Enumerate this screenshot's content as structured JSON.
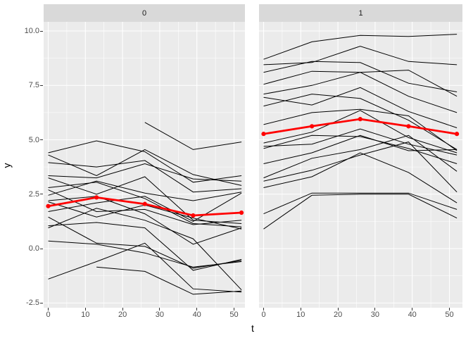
{
  "chart_data": {
    "type": "line",
    "subtype": "faceted-spaghetti-plot-with-mean",
    "title": "",
    "xlabel": "t",
    "ylabel": "y",
    "grid": true,
    "legend": "none",
    "xlim": [
      -1.2,
      52.9
    ],
    "ylim": [
      -2.72,
      10.42
    ],
    "t_values": [
      0,
      13,
      26,
      39,
      52
    ],
    "x_ticks": {
      "values": [
        0,
        10,
        20,
        30,
        40,
        50
      ],
      "labels": [
        "0",
        "10",
        "20",
        "30",
        "40",
        "50"
      ]
    },
    "y_ticks": {
      "values": [
        10.0,
        7.5,
        5.0,
        2.5,
        0.0,
        -2.5
      ],
      "labels": [
        "10.0",
        "7.5",
        "5.0",
        "2.5",
        "0.0",
        "-2.5"
      ]
    },
    "x_minor": [
      5,
      15,
      25,
      35,
      45
    ],
    "y_minor": [
      -1.25,
      1.25,
      3.75,
      6.25,
      8.75
    ],
    "colors": {
      "panel_bg": "#EBEBEB",
      "strip_bg": "#D9D9D9",
      "grid": "#FFFFFF",
      "subject_line": "#000000",
      "mean_line": "#FF0000",
      "tick_text": "#4D4D4D",
      "strip_text": "#1A1A1A",
      "axis_title_text": "#000000",
      "tick_mark": "#333333"
    },
    "facets": [
      {
        "label": "0",
        "lines": [
          [
            [
              0,
              4.4
            ],
            [
              13,
              4.95
            ],
            [
              26,
              4.45
            ],
            [
              39,
              3.05
            ],
            [
              52,
              3.35
            ]
          ],
          [
            [
              0,
              4.3
            ],
            [
              13,
              3.35
            ],
            [
              26,
              4.55
            ],
            [
              39,
              3.4
            ],
            [
              52,
              2.9
            ]
          ],
          [
            [
              0,
              3.95
            ],
            [
              13,
              3.75
            ],
            [
              26,
              4.05
            ],
            [
              39,
              2.6
            ],
            [
              52,
              2.75
            ]
          ],
          [
            [
              0,
              3.35
            ],
            [
              13,
              3.25
            ],
            [
              26,
              3.9
            ],
            [
              39,
              3.2
            ],
            [
              52,
              3.1
            ]
          ],
          [
            [
              0,
              3.25
            ],
            [
              13,
              2.5
            ],
            [
              26,
              3.3
            ],
            [
              39,
              1.3
            ],
            [
              52,
              1.15
            ]
          ],
          [
            [
              0,
              2.8
            ],
            [
              13,
              3.05
            ],
            [
              26,
              2.3
            ],
            [
              39,
              1.15
            ],
            [
              52,
              1.0
            ]
          ],
          [
            [
              0,
              2.7
            ],
            [
              13,
              1.7
            ],
            [
              26,
              1.8
            ],
            [
              39,
              1.1
            ],
            [
              52,
              1.3
            ]
          ],
          [
            [
              0,
              2.45
            ],
            [
              13,
              3.1
            ],
            [
              26,
              2.55
            ],
            [
              39,
              2.2
            ],
            [
              52,
              2.6
            ]
          ],
          [
            [
              0,
              2.2
            ],
            [
              13,
              2.4
            ],
            [
              26,
              1.6
            ],
            [
              39,
              0.2
            ],
            [
              52,
              0.95
            ]
          ],
          [
            [
              0,
              2.15
            ],
            [
              13,
              1.45
            ],
            [
              26,
              2.0
            ],
            [
              39,
              1.4
            ],
            [
              52,
              0.9
            ]
          ],
          [
            [
              0,
              1.7
            ],
            [
              13,
              2.1
            ],
            [
              26,
              2.4
            ],
            [
              39,
              1.25
            ],
            [
              52,
              2.55
            ]
          ],
          [
            [
              0,
              1.45
            ],
            [
              13,
              0.25
            ],
            [
              26,
              0.1
            ],
            [
              39,
              -0.9
            ],
            [
              52,
              -0.55
            ]
          ],
          [
            [
              0,
              1.05
            ],
            [
              13,
              1.2
            ],
            [
              26,
              0.95
            ],
            [
              39,
              -1.0
            ],
            [
              52,
              -0.5
            ]
          ],
          [
            [
              0,
              0.95
            ],
            [
              13,
              1.85
            ],
            [
              26,
              1.3
            ],
            [
              39,
              0.45
            ],
            [
              52,
              -1.9
            ]
          ],
          [
            [
              0,
              0.35
            ],
            [
              13,
              0.2
            ],
            [
              26,
              -0.2
            ],
            [
              39,
              -0.85
            ],
            [
              52,
              -0.6
            ]
          ],
          [
            [
              0,
              -1.4
            ],
            [
              13,
              -0.6
            ],
            [
              26,
              0.25
            ],
            [
              39,
              -1.85
            ],
            [
              52,
              -2.0
            ]
          ],
          [
            [
              13,
              -0.85
            ],
            [
              26,
              -1.05
            ],
            [
              39,
              -2.1
            ],
            [
              52,
              -1.95
            ]
          ],
          [
            [
              26,
              5.8
            ],
            [
              39,
              4.55
            ],
            [
              52,
              4.9
            ]
          ]
        ],
        "mean_line": [
          [
            0,
            1.95
          ],
          [
            13,
            2.35
          ],
          [
            26,
            2.05
          ],
          [
            39,
            1.52
          ],
          [
            52,
            1.65
          ]
        ]
      },
      {
        "label": "1",
        "lines": [
          [
            [
              0,
              8.7
            ],
            [
              13,
              9.5
            ],
            [
              26,
              9.8
            ],
            [
              39,
              9.75
            ],
            [
              52,
              9.85
            ]
          ],
          [
            [
              0,
              8.45
            ],
            [
              13,
              8.55
            ],
            [
              26,
              9.3
            ],
            [
              39,
              8.6
            ],
            [
              52,
              8.45
            ]
          ],
          [
            [
              0,
              8.1
            ],
            [
              13,
              8.6
            ],
            [
              26,
              8.55
            ],
            [
              39,
              7.6
            ],
            [
              52,
              7.2
            ]
          ],
          [
            [
              0,
              7.55
            ],
            [
              13,
              8.15
            ],
            [
              26,
              8.1
            ],
            [
              39,
              8.2
            ],
            [
              52,
              7.0
            ]
          ],
          [
            [
              0,
              7.1
            ],
            [
              13,
              7.5
            ],
            [
              26,
              8.1
            ],
            [
              39,
              7.0
            ],
            [
              52,
              6.25
            ]
          ],
          [
            [
              0,
              6.95
            ],
            [
              13,
              6.6
            ],
            [
              26,
              7.4
            ],
            [
              39,
              6.3
            ],
            [
              52,
              5.55
            ]
          ],
          [
            [
              0,
              6.55
            ],
            [
              13,
              7.1
            ],
            [
              26,
              6.9
            ],
            [
              39,
              5.9
            ],
            [
              52,
              4.55
            ]
          ],
          [
            [
              0,
              5.7
            ],
            [
              13,
              6.25
            ],
            [
              26,
              6.4
            ],
            [
              39,
              6.1
            ],
            [
              52,
              4.5
            ]
          ],
          [
            [
              0,
              4.85
            ],
            [
              13,
              5.35
            ],
            [
              26,
              6.35
            ],
            [
              39,
              5.1
            ],
            [
              52,
              4.4
            ]
          ],
          [
            [
              0,
              4.7
            ],
            [
              13,
              4.8
            ],
            [
              26,
              5.5
            ],
            [
              39,
              4.8
            ],
            [
              52,
              4.3
            ]
          ],
          [
            [
              0,
              4.6
            ],
            [
              13,
              5.2
            ],
            [
              26,
              5.15
            ],
            [
              39,
              4.6
            ],
            [
              52,
              3.9
            ]
          ],
          [
            [
              0,
              3.9
            ],
            [
              13,
              4.4
            ],
            [
              26,
              5.2
            ],
            [
              39,
              4.5
            ],
            [
              52,
              4.55
            ]
          ],
          [
            [
              0,
              3.25
            ],
            [
              13,
              4.15
            ],
            [
              26,
              4.55
            ],
            [
              39,
              5.2
            ],
            [
              52,
              3.55
            ]
          ],
          [
            [
              0,
              3.1
            ],
            [
              13,
              3.6
            ],
            [
              26,
              4.3
            ],
            [
              39,
              4.9
            ],
            [
              52,
              2.6
            ]
          ],
          [
            [
              0,
              2.8
            ],
            [
              13,
              3.3
            ],
            [
              26,
              4.4
            ],
            [
              39,
              3.5
            ],
            [
              52,
              2.1
            ]
          ],
          [
            [
              0,
              1.6
            ],
            [
              13,
              2.55
            ],
            [
              26,
              2.55
            ],
            [
              39,
              2.55
            ],
            [
              52,
              1.8
            ]
          ],
          [
            [
              0,
              0.9
            ],
            [
              13,
              2.45
            ],
            [
              26,
              2.5
            ],
            [
              39,
              2.5
            ],
            [
              52,
              1.4
            ]
          ]
        ],
        "mean_line": [
          [
            0,
            5.27
          ],
          [
            13,
            5.62
          ],
          [
            26,
            5.95
          ],
          [
            39,
            5.62
          ],
          [
            52,
            5.27
          ]
        ]
      }
    ]
  }
}
